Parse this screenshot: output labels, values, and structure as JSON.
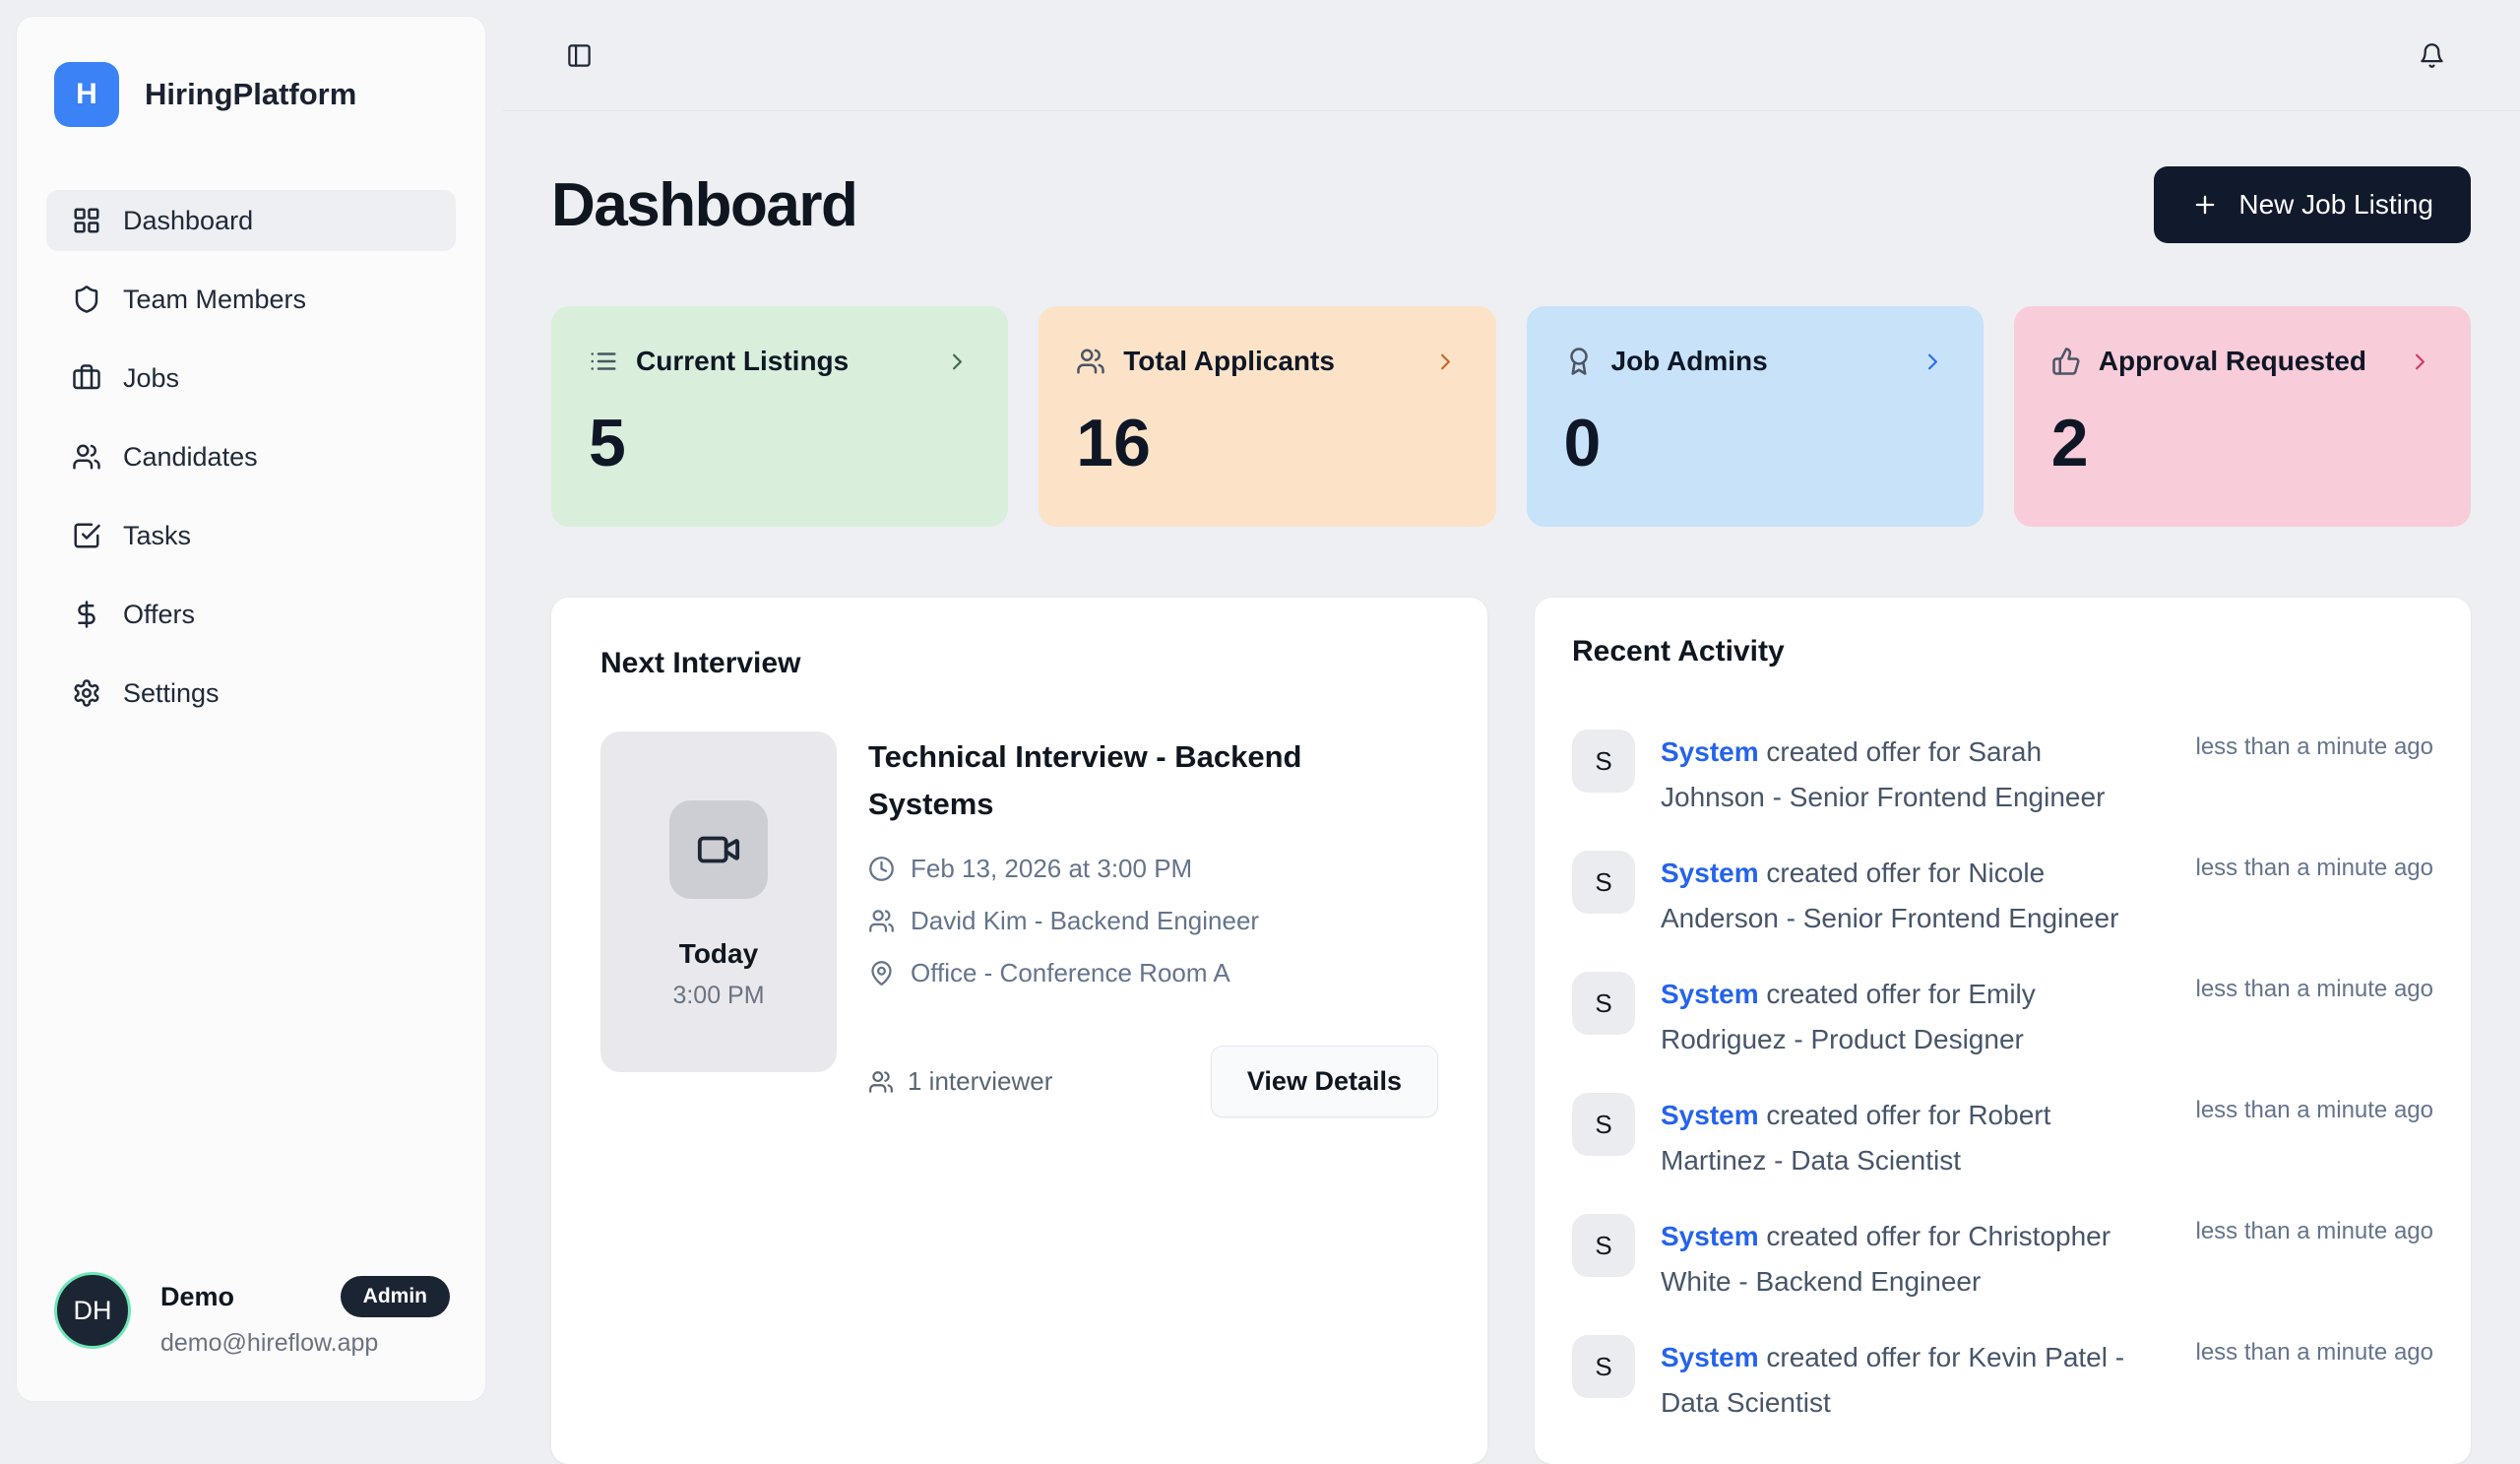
{
  "app": {
    "logo_letter": "H",
    "title": "HiringPlatform"
  },
  "colors": {
    "brand_blue": "#3b82f6",
    "dark_navy": "#101a2c",
    "link_blue": "#2563eb",
    "avatar_ring_green": "#6ee7b7"
  },
  "sidebar": {
    "items": [
      {
        "label": "Dashboard",
        "icon": "dashboard-icon",
        "active": true
      },
      {
        "label": "Team Members",
        "icon": "shield-icon",
        "active": false
      },
      {
        "label": "Jobs",
        "icon": "briefcase-icon",
        "active": false
      },
      {
        "label": "Candidates",
        "icon": "users-icon",
        "active": false
      },
      {
        "label": "Tasks",
        "icon": "tasks-icon",
        "active": false
      },
      {
        "label": "Offers",
        "icon": "dollar-icon",
        "active": false
      },
      {
        "label": "Settings",
        "icon": "settings-icon",
        "active": false
      }
    ],
    "user": {
      "initials": "DH",
      "name": "Demo",
      "badge": "Admin",
      "email": "demo@hireflow.app"
    }
  },
  "header": {
    "title": "Dashboard",
    "new_job_button": "New Job Listing"
  },
  "stats": [
    {
      "label": "Current Listings",
      "value": "5",
      "icon": "list-icon",
      "bg": "#d9efdc",
      "accent": "#3e6b50"
    },
    {
      "label": "Total Applicants",
      "value": "16",
      "icon": "users-icon",
      "bg": "#fce3c8",
      "accent": "#c06b2f"
    },
    {
      "label": "Job Admins",
      "value": "0",
      "icon": "award-icon",
      "bg": "#c7e2f9",
      "accent": "#2c6ee8"
    },
    {
      "label": "Approval Requested",
      "value": "2",
      "icon": "thumbs-up-icon",
      "bg": "#f9ccd9",
      "accent": "#d23b68"
    }
  ],
  "next_interview": {
    "section_title": "Next Interview",
    "day": "Today",
    "time": "3:00 PM",
    "job_title": "Technical Interview - Backend Systems",
    "meta": [
      {
        "icon": "clock-icon",
        "text": "Feb 13, 2026 at 3:00 PM"
      },
      {
        "icon": "users-icon",
        "text": "David Kim - Backend Engineer"
      },
      {
        "icon": "map-pin-icon",
        "text": "Office - Conference Room A"
      }
    ],
    "interviewer_count": "1 interviewer",
    "view_details_label": "View Details"
  },
  "recent_activity": {
    "title": "Recent Activity",
    "items": [
      {
        "avatar": "S",
        "actor": "System",
        "text": " created offer for Sarah Johnson - Senior Frontend Engineer",
        "time": "less than a minute ago"
      },
      {
        "avatar": "S",
        "actor": "System",
        "text": " created offer for Nicole Anderson - Senior Frontend Engineer",
        "time": "less than a minute ago"
      },
      {
        "avatar": "S",
        "actor": "System",
        "text": " created offer for Emily Rodriguez - Product Designer",
        "time": "less than a minute ago"
      },
      {
        "avatar": "S",
        "actor": "System",
        "text": " created offer for Robert Martinez - Data Scientist",
        "time": "less than a minute ago"
      },
      {
        "avatar": "S",
        "actor": "System",
        "text": " created offer for Christopher White - Backend Engineer",
        "time": "less than a minute ago"
      },
      {
        "avatar": "S",
        "actor": "System",
        "text": " created offer for Kevin Patel - Data Scientist",
        "time": "less than a minute ago"
      }
    ]
  }
}
